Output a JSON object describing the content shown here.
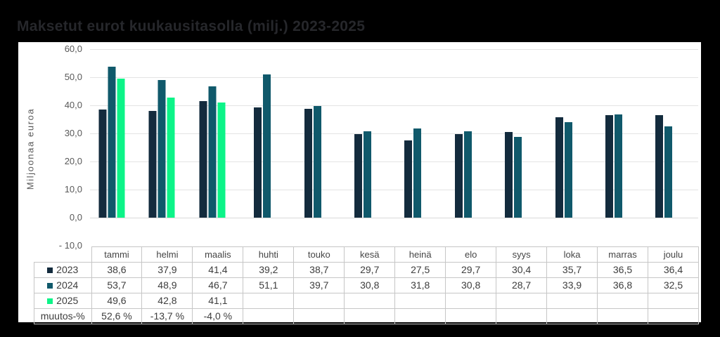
{
  "page": {
    "background": "#000000",
    "panel_background": "#ffffff"
  },
  "title": "Maksetut eurot kuukausitasolla (milj.) 2023-2025",
  "chart_data": {
    "type": "bar",
    "title": "Maksetut eurot kuukausitasolla (milj.) 2023-2025",
    "ylabel": "Miljoonaa euroa",
    "ylim": [
      -10,
      60
    ],
    "ytick_step": 10,
    "ytick_labels": [
      "60,0",
      "50,0",
      "40,0",
      "30,0",
      "20,0",
      "10,0",
      "0,0",
      "- 10,0"
    ],
    "grid": true,
    "legend_position": "data-table",
    "categories": [
      "tammi",
      "helmi",
      "maalis",
      "huhti",
      "touko",
      "kesä",
      "heinä",
      "elo",
      "syys",
      "loka",
      "marras",
      "joulu"
    ],
    "series": [
      {
        "name": "2023",
        "color": "#132b3d",
        "values": [
          38.6,
          37.9,
          41.4,
          39.2,
          38.7,
          29.7,
          27.5,
          29.7,
          30.4,
          35.7,
          36.5,
          36.4
        ]
      },
      {
        "name": "2024",
        "color": "#10596b",
        "values": [
          53.7,
          48.9,
          46.7,
          51.1,
          39.7,
          30.8,
          31.8,
          30.8,
          28.7,
          33.9,
          36.8,
          32.5
        ]
      },
      {
        "name": "2025",
        "color": "#0cf488",
        "values": [
          49.6,
          42.8,
          41.1,
          null,
          null,
          null,
          null,
          null,
          null,
          null,
          null,
          null
        ]
      }
    ],
    "extra_table_row": {
      "label": "muutos-%",
      "values": [
        "52,6 %",
        "-13,7 %",
        "-4,0 %",
        "",
        "",
        "",
        "",
        "",
        "",
        "",
        "",
        ""
      ]
    }
  }
}
